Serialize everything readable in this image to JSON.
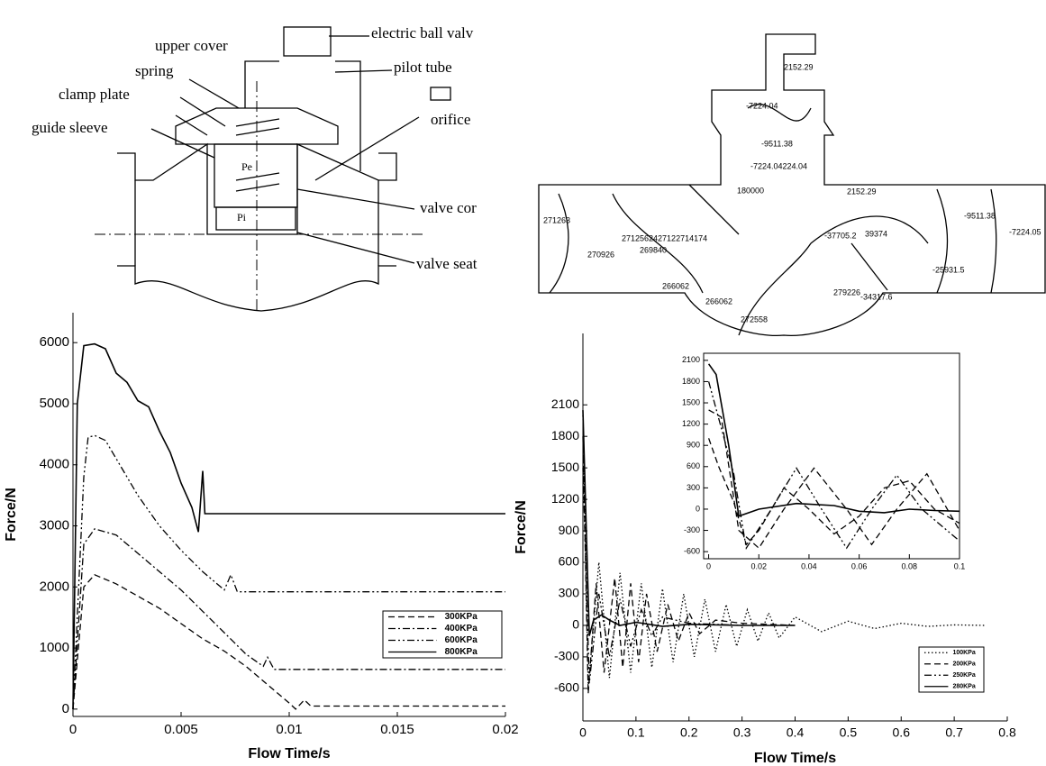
{
  "diagram": {
    "labels": [
      "electric ball valv",
      "upper cover",
      "pilot tube",
      "spring",
      "clamp plate",
      "orifice",
      "guide sleeve",
      "Pe",
      "Pi",
      "valve cor",
      "valve seat"
    ]
  },
  "contour": {
    "labels": [
      "2152.29",
      "-7224.04",
      "-9511.38",
      "-7224.04224.04",
      "180000",
      "2152.29",
      "-9511.38",
      "-7224.05",
      "271263",
      "2712562427122714174",
      "270926",
      "269840",
      "266062",
      "266062",
      "272558",
      "279226",
      "-37705.2",
      "-25931.5",
      "-34317.6",
      "39374"
    ]
  },
  "chart_data": [
    {
      "type": "line",
      "xlabel": "Flow Time/s",
      "ylabel": "Force/N",
      "xlim": [
        0,
        0.02
      ],
      "ylim": [
        -120,
        6490
      ],
      "xticks": [
        0,
        0.005,
        0.01,
        0.015,
        0.02
      ],
      "yticks": [
        0,
        1000,
        2000,
        3000,
        4000,
        5000,
        6000
      ],
      "legend": "lower right",
      "series": [
        {
          "name": "300KPa",
          "color": "#000000",
          "style": "dashed",
          "x": [
            0,
            0.0005,
            0.001,
            0.002,
            0.003,
            0.004,
            0.005,
            0.006,
            0.007,
            0.008,
            0.009,
            0.01,
            0.0103,
            0.0107,
            0.011,
            0.02
          ],
          "values": [
            0,
            2000,
            2200,
            2050,
            1850,
            1650,
            1400,
            1150,
            950,
            700,
            400,
            100,
            0,
            150,
            50,
            50
          ]
        },
        {
          "name": "400KPa",
          "color": "#000000",
          "style": "dashdot",
          "x": [
            0,
            0.0005,
            0.001,
            0.002,
            0.003,
            0.004,
            0.005,
            0.006,
            0.007,
            0.008,
            0.0088,
            0.009,
            0.0093,
            0.02
          ],
          "values": [
            0,
            2700,
            2950,
            2850,
            2550,
            2250,
            1950,
            1600,
            1250,
            900,
            700,
            850,
            650,
            650
          ]
        },
        {
          "name": "600KPa",
          "color": "#000000",
          "style": "dashdotdot",
          "x": [
            0,
            0.0005,
            0.0007,
            0.001,
            0.0015,
            0.002,
            0.003,
            0.004,
            0.005,
            0.006,
            0.007,
            0.0073,
            0.0076,
            0.02
          ],
          "values": [
            0,
            3800,
            4450,
            4480,
            4400,
            4100,
            3500,
            3000,
            2600,
            2250,
            1950,
            2200,
            1920,
            1920
          ]
        },
        {
          "name": "800KPa",
          "color": "#000000",
          "style": "solid",
          "x": [
            0,
            0.0002,
            0.0005,
            0.001,
            0.0015,
            0.002,
            0.0025,
            0.003,
            0.0035,
            0.004,
            0.0045,
            0.005,
            0.0055,
            0.0058,
            0.006,
            0.0061,
            0.02
          ],
          "values": [
            0,
            5000,
            5950,
            5980,
            5900,
            5500,
            5350,
            5050,
            4950,
            4550,
            4200,
            3700,
            3300,
            2900,
            3900,
            3200,
            3200
          ]
        }
      ]
    },
    {
      "type": "line",
      "xlabel": "Flow Time/s",
      "ylabel": "Force/N",
      "xlim": [
        0,
        0.8
      ],
      "ylim": [
        -910,
        2780
      ],
      "xticks": [
        0,
        0.1,
        0.2,
        0.3,
        0.4,
        0.5,
        0.6,
        0.7,
        0.8
      ],
      "yticks": [
        -600,
        -300,
        0,
        300,
        600,
        900,
        1200,
        1500,
        1800,
        2100
      ],
      "legend": "lower right",
      "series": [
        {
          "name": "100KPa",
          "color": "#000000",
          "style": "dotted",
          "x": [
            0,
            0.01,
            0.03,
            0.05,
            0.07,
            0.09,
            0.11,
            0.13,
            0.15,
            0.17,
            0.19,
            0.21,
            0.23,
            0.25,
            0.27,
            0.29,
            0.31,
            0.33,
            0.35,
            0.37,
            0.4,
            0.45,
            0.5,
            0.55,
            0.6,
            0.65,
            0.7,
            0.76
          ],
          "values": [
            2000,
            -600,
            600,
            -500,
            500,
            -450,
            400,
            -400,
            350,
            -350,
            300,
            -300,
            250,
            -250,
            200,
            -200,
            150,
            -150,
            120,
            -120,
            80,
            -60,
            40,
            -30,
            20,
            -10,
            5,
            0
          ]
        },
        {
          "name": "200KPa",
          "color": "#000000",
          "style": "dashed",
          "x": [
            0,
            0.01,
            0.025,
            0.04,
            0.06,
            0.075,
            0.09,
            0.105,
            0.12,
            0.14,
            0.16,
            0.18,
            0.2,
            0.22,
            0.25,
            0.3,
            0.4
          ],
          "values": [
            1800,
            -650,
            400,
            -450,
            450,
            -400,
            400,
            -350,
            300,
            -250,
            200,
            -150,
            120,
            -80,
            50,
            20,
            0
          ]
        },
        {
          "name": "250KPa",
          "color": "#000000",
          "style": "dashdotdot",
          "x": [
            0,
            0.012,
            0.03,
            0.05,
            0.07,
            0.09,
            0.11,
            0.13,
            0.15,
            0.2,
            0.3
          ],
          "values": [
            1500,
            -550,
            300,
            -300,
            250,
            -200,
            150,
            -100,
            80,
            20,
            0
          ]
        },
        {
          "name": "280KPa",
          "color": "#000000",
          "style": "solid",
          "x": [
            0,
            0.012,
            0.02,
            0.035,
            0.05,
            0.07,
            0.1,
            0.15,
            0.2,
            0.3,
            0.4
          ],
          "values": [
            2050,
            -100,
            50,
            100,
            50,
            0,
            30,
            -10,
            10,
            0,
            0
          ]
        }
      ]
    },
    {
      "type": "line",
      "xlim": [
        -0.002,
        0.1
      ],
      "ylim": [
        -700,
        2200
      ],
      "frame": true,
      "xticks": [
        0,
        0.02,
        0.04,
        0.06,
        0.08,
        0.1
      ],
      "yticks": [
        -600,
        -300,
        0,
        300,
        600,
        900,
        1200,
        1500,
        1800,
        2100
      ],
      "series": [
        {
          "color": "#000000",
          "style": "dashed",
          "x": [
            0,
            0.004,
            0.01,
            0.015,
            0.02,
            0.03,
            0.04,
            0.05,
            0.06,
            0.07,
            0.08,
            0.09,
            0.1
          ],
          "values": [
            1000,
            600,
            100,
            -500,
            -300,
            300,
            0,
            -350,
            -100,
            300,
            400,
            0,
            -200
          ]
        },
        {
          "color": "#000000",
          "style": "dashed",
          "x": [
            0,
            0.005,
            0.012,
            0.02,
            0.03,
            0.042,
            0.055,
            0.065,
            0.075,
            0.087,
            0.1
          ],
          "values": [
            1400,
            1300,
            -300,
            -550,
            0,
            580,
            0,
            -500,
            0,
            500,
            -300
          ]
        },
        {
          "color": "#000000",
          "style": "dashdotdot",
          "x": [
            0,
            0.01,
            0.015,
            0.025,
            0.035,
            0.045,
            0.055,
            0.065,
            0.075,
            0.085,
            0.1
          ],
          "values": [
            1800,
            500,
            -550,
            0,
            580,
            0,
            -550,
            0,
            480,
            0,
            -450
          ]
        },
        {
          "color": "#000000",
          "style": "solid",
          "x": [
            0,
            0.003,
            0.008,
            0.012,
            0.02,
            0.035,
            0.05,
            0.06,
            0.07,
            0.08,
            0.09,
            0.1
          ],
          "values": [
            2050,
            1900,
            900,
            -100,
            0,
            80,
            50,
            -30,
            -50,
            0,
            -20,
            -30
          ]
        }
      ]
    }
  ]
}
